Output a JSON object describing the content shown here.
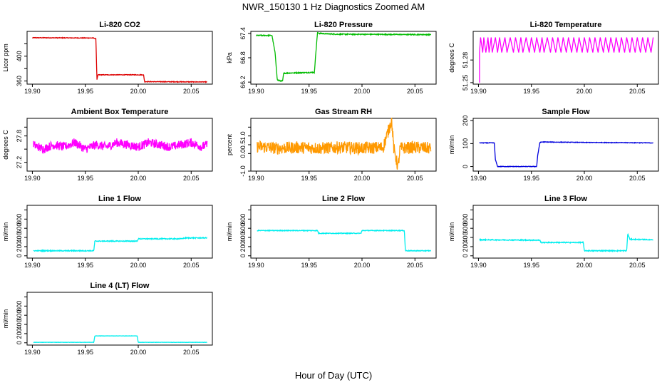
{
  "page": {
    "title": "NWR_150130  1 Hz Diagnostics Zoomed AM",
    "xlabel": "Hour of Day (UTC)"
  },
  "chart_data": [
    {
      "type": "line",
      "title": "Li-820 CO2",
      "ylabel": "Licor ppm",
      "color": "#dd0000",
      "xlim": [
        19.895,
        20.07
      ],
      "xticks": [
        "19.90",
        "19.95",
        "20.00",
        "20.05"
      ],
      "ylim": [
        355,
        440
      ],
      "yticks": [
        360,
        380,
        400,
        420
      ],
      "ytick_labels": [
        "360",
        "",
        "400",
        ""
      ],
      "noise": 0.5,
      "series": [
        {
          "name": "Li-820 CO2",
          "points": [
            [
              19.9,
              429.8
            ],
            [
              19.958,
              429.3
            ],
            [
              19.96,
              428
            ],
            [
              19.961,
              362
            ],
            [
              19.962,
              370
            ],
            [
              20.005,
              370
            ],
            [
              20.006,
              359
            ],
            [
              20.065,
              358.5
            ]
          ]
        }
      ]
    },
    {
      "type": "line",
      "title": "Li-820 Pressure",
      "ylabel": "kPa",
      "color": "#00bb00",
      "xlim": [
        19.895,
        20.07
      ],
      "xticks": [
        "19.90",
        "19.95",
        "20.00",
        "20.05"
      ],
      "ylim": [
        66.15,
        67.45
      ],
      "yticks": [
        66.2,
        66.8,
        67.4
      ],
      "ytick_labels": [
        "66.2",
        "66.8",
        "67.4"
      ],
      "noise": 0.012,
      "series": [
        {
          "name": "Li-820 Pressure",
          "points": [
            [
              19.9,
              67.35
            ],
            [
              19.915,
              67.35
            ],
            [
              19.918,
              66.9
            ],
            [
              19.92,
              66.25
            ],
            [
              19.925,
              66.22
            ],
            [
              19.926,
              66.42
            ],
            [
              19.94,
              66.43
            ],
            [
              19.955,
              66.44
            ],
            [
              19.956,
              66.8
            ],
            [
              19.958,
              67.42
            ],
            [
              19.96,
              67.4
            ],
            [
              19.975,
              67.38
            ],
            [
              20.065,
              67.37
            ]
          ]
        }
      ]
    },
    {
      "type": "line",
      "title": "Li-820 Temperature",
      "ylabel": "degrees C",
      "color": "#ff00ff",
      "xlim": [
        19.895,
        20.07
      ],
      "xticks": [
        "19.90",
        "19.95",
        "20.00",
        "20.05"
      ],
      "ylim": [
        51.248,
        51.318
      ],
      "yticks": [
        51.25,
        51.28
      ],
      "ytick_labels": [
        "51.25",
        "51.28"
      ],
      "noise": 0,
      "series": [
        {
          "name": "Li-820 Temperature",
          "points": [
            [
              19.901,
              51.25
            ],
            [
              19.901,
              51.29
            ],
            [
              19.902,
              51.31
            ],
            [
              19.904,
              51.29
            ],
            [
              19.905,
              51.31
            ],
            [
              19.907,
              51.29
            ],
            [
              19.909,
              51.31
            ],
            [
              19.91,
              51.29
            ],
            [
              19.912,
              51.31
            ],
            [
              19.913,
              51.29
            ],
            [
              19.916,
              51.31
            ],
            [
              19.918,
              51.29
            ],
            [
              19.92,
              51.31
            ],
            [
              19.922,
              51.29
            ],
            [
              19.925,
              51.31
            ],
            [
              19.927,
              51.29
            ],
            [
              19.93,
              51.31
            ],
            [
              19.933,
              51.29
            ],
            [
              19.935,
              51.31
            ],
            [
              19.938,
              51.29
            ],
            [
              19.94,
              51.31
            ],
            [
              19.942,
              51.29
            ],
            [
              19.945,
              51.31
            ],
            [
              19.948,
              51.29
            ],
            [
              19.95,
              51.31
            ],
            [
              19.953,
              51.29
            ],
            [
              19.955,
              51.31
            ],
            [
              19.958,
              51.29
            ],
            [
              19.96,
              51.31
            ],
            [
              19.962,
              51.29
            ],
            [
              19.965,
              51.31
            ],
            [
              19.968,
              51.29
            ],
            [
              19.97,
              51.31
            ],
            [
              19.973,
              51.29
            ],
            [
              19.975,
              51.31
            ],
            [
              19.978,
              51.29
            ],
            [
              19.98,
              51.31
            ],
            [
              19.983,
              51.29
            ],
            [
              19.985,
              51.31
            ],
            [
              19.988,
              51.29
            ],
            [
              19.99,
              51.31
            ],
            [
              19.993,
              51.29
            ],
            [
              19.995,
              51.31
            ],
            [
              19.998,
              51.29
            ],
            [
              20.0,
              51.31
            ],
            [
              20.003,
              51.29
            ],
            [
              20.005,
              51.31
            ],
            [
              20.008,
              51.29
            ],
            [
              20.01,
              51.31
            ],
            [
              20.013,
              51.29
            ],
            [
              20.015,
              51.31
            ],
            [
              20.018,
              51.29
            ],
            [
              20.02,
              51.31
            ],
            [
              20.023,
              51.29
            ],
            [
              20.025,
              51.31
            ],
            [
              20.028,
              51.29
            ],
            [
              20.03,
              51.31
            ],
            [
              20.033,
              51.29
            ],
            [
              20.035,
              51.31
            ],
            [
              20.038,
              51.29
            ],
            [
              20.04,
              51.31
            ],
            [
              20.043,
              51.29
            ],
            [
              20.045,
              51.31
            ],
            [
              20.048,
              51.29
            ],
            [
              20.05,
              51.31
            ],
            [
              20.053,
              51.29
            ],
            [
              20.055,
              51.31
            ],
            [
              20.058,
              51.29
            ],
            [
              20.06,
              51.31
            ],
            [
              20.063,
              51.29
            ],
            [
              20.065,
              51.31
            ]
          ]
        }
      ]
    },
    {
      "type": "line",
      "title": "Ambient Box Temperature",
      "ylabel": "degrees C",
      "color": "#ff00ff",
      "xlim": [
        19.895,
        20.07
      ],
      "xticks": [
        "19.90",
        "19.95",
        "20.00",
        "20.05"
      ],
      "ylim": [
        27.0,
        28.2
      ],
      "yticks": [
        27.2,
        27.5,
        27.8,
        28.0
      ],
      "ytick_labels": [
        "27.2",
        "",
        "27.8",
        ""
      ],
      "noise": 0.1,
      "series": [
        {
          "name": "Ambient Box Temperature",
          "points": [
            [
              19.901,
              27.6
            ],
            [
              19.91,
              27.5
            ],
            [
              19.92,
              27.6
            ],
            [
              19.93,
              27.55
            ],
            [
              19.94,
              27.65
            ],
            [
              19.95,
              27.5
            ],
            [
              19.96,
              27.6
            ],
            [
              19.97,
              27.55
            ],
            [
              19.98,
              27.65
            ],
            [
              19.99,
              27.6
            ],
            [
              20.0,
              27.55
            ],
            [
              20.01,
              27.65
            ],
            [
              20.02,
              27.6
            ],
            [
              20.03,
              27.55
            ],
            [
              20.04,
              27.6
            ],
            [
              20.05,
              27.65
            ],
            [
              20.06,
              27.55
            ],
            [
              20.065,
              27.6
            ]
          ]
        }
      ]
    },
    {
      "type": "line",
      "title": "Gas Stream RH",
      "ylabel": "percent",
      "color": "#ff9900",
      "xlim": [
        19.895,
        20.07
      ],
      "xticks": [
        "19.90",
        "19.95",
        "20.00",
        "20.05"
      ],
      "ylim": [
        -1.0,
        2.0
      ],
      "yticks": [
        -1.0,
        0.0,
        0.5,
        1.0,
        1.5
      ],
      "ytick_labels": [
        "-1.0",
        "0.0",
        "0.5",
        "1.0",
        ""
      ],
      "noise": 0.35,
      "series": [
        {
          "name": "Gas Stream RH",
          "points": [
            [
              19.901,
              0.4
            ],
            [
              19.92,
              0.3
            ],
            [
              19.94,
              0.35
            ],
            [
              19.96,
              0.3
            ],
            [
              19.98,
              0.35
            ],
            [
              20.0,
              0.3
            ],
            [
              20.02,
              0.35
            ],
            [
              20.028,
              1.9
            ],
            [
              20.03,
              0.3
            ],
            [
              20.034,
              -0.8
            ],
            [
              20.036,
              0.3
            ],
            [
              20.05,
              0.35
            ],
            [
              20.065,
              0.3
            ]
          ]
        }
      ]
    },
    {
      "type": "line",
      "title": "Sample Flow",
      "ylabel": "ml/min",
      "color": "#0000dd",
      "xlim": [
        19.895,
        20.07
      ],
      "xticks": [
        "19.90",
        "19.95",
        "20.00",
        "20.05"
      ],
      "ylim": [
        -20,
        210
      ],
      "yticks": [
        0,
        100,
        200
      ],
      "ytick_labels": [
        "0",
        "100",
        "200"
      ],
      "noise": 1.2,
      "series": [
        {
          "name": "Sample Flow",
          "points": [
            [
              19.901,
              103
            ],
            [
              19.915,
              103
            ],
            [
              19.916,
              30
            ],
            [
              19.918,
              0
            ],
            [
              19.955,
              0
            ],
            [
              19.956,
              50
            ],
            [
              19.958,
              105
            ],
            [
              19.96,
              107
            ],
            [
              20.0,
              105
            ],
            [
              20.065,
              103
            ]
          ]
        }
      ]
    },
    {
      "type": "line",
      "title": "Line 1 Flow",
      "ylabel": "ml/min",
      "color": "#00eeee",
      "xlim": [
        19.895,
        20.07
      ],
      "xticks": [
        "19.90",
        "19.95",
        "20.00",
        "20.05"
      ],
      "ylim": [
        -50,
        1100
      ],
      "yticks": [
        0,
        200,
        400,
        600,
        800,
        1000
      ],
      "ytick_labels": [
        "0",
        "200",
        "400",
        "600",
        "800",
        ""
      ],
      "noise": 10,
      "series": [
        {
          "name": "Line 1 Flow",
          "points": [
            [
              19.901,
              110
            ],
            [
              19.958,
              110
            ],
            [
              19.959,
              320
            ],
            [
              19.999,
              320
            ],
            [
              20.0,
              370
            ],
            [
              20.04,
              370
            ],
            [
              20.045,
              390
            ],
            [
              20.065,
              390
            ]
          ]
        }
      ]
    },
    {
      "type": "line",
      "title": "Line 2 Flow",
      "ylabel": "ml/min",
      "color": "#00eeee",
      "xlim": [
        19.895,
        20.07
      ],
      "xticks": [
        "19.90",
        "19.95",
        "20.00",
        "20.05"
      ],
      "ylim": [
        -50,
        1100
      ],
      "yticks": [
        0,
        200,
        400,
        600,
        800,
        1000
      ],
      "ytick_labels": [
        "0",
        "200",
        "400",
        "600",
        "800",
        ""
      ],
      "noise": 8,
      "series": [
        {
          "name": "Line 2 Flow",
          "points": [
            [
              19.901,
              550
            ],
            [
              19.958,
              550
            ],
            [
              19.959,
              490
            ],
            [
              19.999,
              490
            ],
            [
              20.0,
              550
            ],
            [
              20.04,
              550
            ],
            [
              20.041,
              110
            ],
            [
              20.065,
              110
            ]
          ]
        }
      ]
    },
    {
      "type": "line",
      "title": "Line 3 Flow",
      "ylabel": "ml/min",
      "color": "#00eeee",
      "xlim": [
        19.895,
        20.07
      ],
      "xticks": [
        "19.90",
        "19.95",
        "20.00",
        "20.05"
      ],
      "ylim": [
        -50,
        1100
      ],
      "yticks": [
        0,
        200,
        400,
        600,
        800,
        1000
      ],
      "ytick_labels": [
        "0",
        "200",
        "400",
        "600",
        "800",
        ""
      ],
      "noise": 10,
      "series": [
        {
          "name": "Line 3 Flow",
          "points": [
            [
              19.901,
              350
            ],
            [
              19.958,
              340
            ],
            [
              19.959,
              290
            ],
            [
              19.999,
              290
            ],
            [
              20.0,
              110
            ],
            [
              20.04,
              110
            ],
            [
              20.041,
              480
            ],
            [
              20.043,
              360
            ],
            [
              20.065,
              350
            ]
          ]
        }
      ]
    },
    {
      "type": "line",
      "title": "Line 4 (LT) Flow",
      "ylabel": "ml/min",
      "color": "#00eeee",
      "xlim": [
        19.895,
        20.07
      ],
      "xticks": [
        "19.90",
        "19.95",
        "20.00",
        "20.05"
      ],
      "ylim": [
        -50,
        1100
      ],
      "yticks": [
        0,
        200,
        400,
        600,
        800,
        1000
      ],
      "ytick_labels": [
        "0",
        "200",
        "400",
        "600",
        "800",
        ""
      ],
      "noise": 3,
      "series": [
        {
          "name": "Line 4 (LT) Flow",
          "points": [
            [
              19.901,
              10
            ],
            [
              19.958,
              10
            ],
            [
              19.959,
              150
            ],
            [
              19.999,
              150
            ],
            [
              20.0,
              10
            ],
            [
              20.065,
              10
            ]
          ]
        }
      ]
    }
  ]
}
